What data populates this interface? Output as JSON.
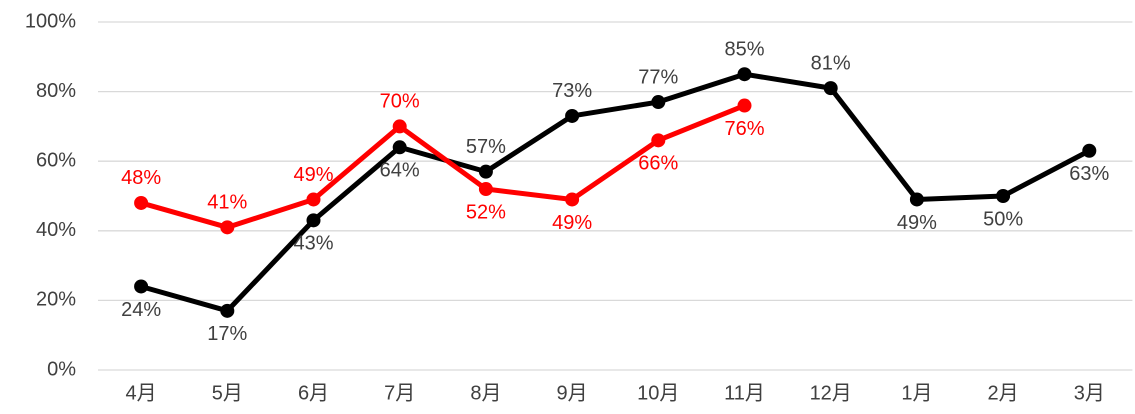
{
  "chart_data": {
    "type": "line",
    "categories": [
      "4月",
      "5月",
      "6月",
      "7月",
      "8月",
      "9月",
      "10月",
      "11月",
      "12月",
      "1月",
      "2月",
      "3月"
    ],
    "series": [
      {
        "color": "#000000",
        "label_color": "#404040",
        "values": [
          24,
          17,
          43,
          64,
          57,
          73,
          77,
          85,
          81,
          49,
          50,
          63
        ],
        "value_labels": [
          "24%",
          "17%",
          "43%",
          "64%",
          "57%",
          "73%",
          "77%",
          "85%",
          "81%",
          "49%",
          "50%",
          "63%"
        ]
      },
      {
        "color": "#ff0000",
        "label_color": "#ff0000",
        "values": [
          48,
          41,
          49,
          70,
          52,
          49,
          66,
          76,
          null,
          null,
          null,
          null
        ],
        "value_labels": [
          "48%",
          "41%",
          "49%",
          "70%",
          "52%",
          "49%",
          "66%",
          "76%",
          null,
          null,
          null,
          null
        ]
      }
    ],
    "ylim": [
      0,
      100
    ],
    "yticks": [
      {
        "value": 0,
        "label": "0%"
      },
      {
        "value": 20,
        "label": "20%"
      },
      {
        "value": 40,
        "label": "40%"
      },
      {
        "value": 60,
        "label": "60%"
      },
      {
        "value": 80,
        "label": "80%"
      },
      {
        "value": 100,
        "label": "100%"
      }
    ],
    "grid": true
  }
}
